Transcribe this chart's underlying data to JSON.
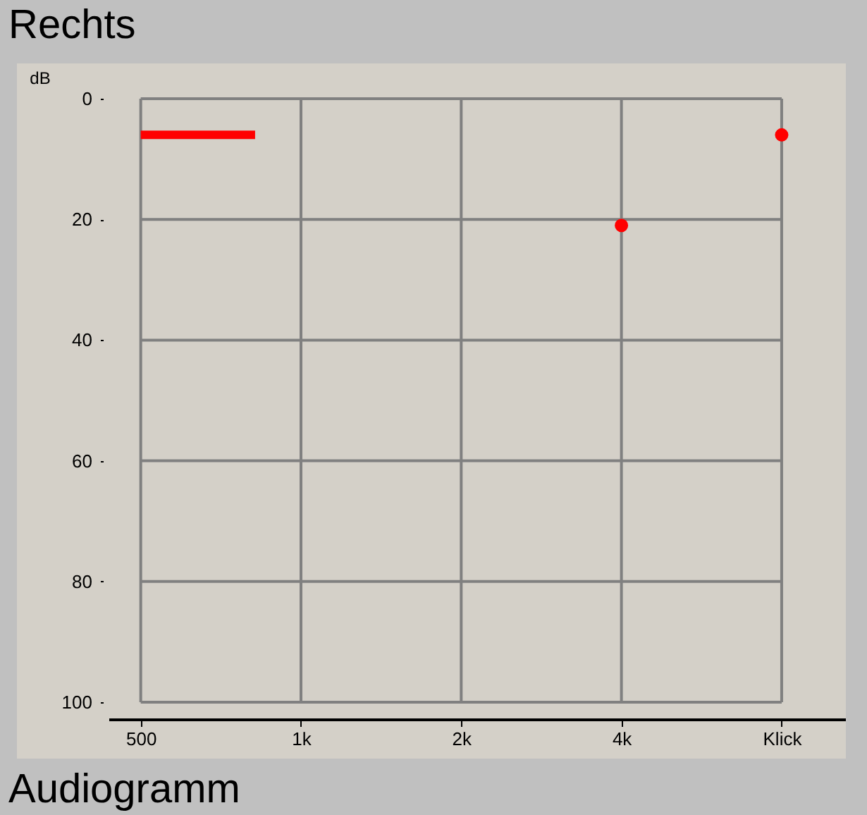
{
  "chart_data": {
    "type": "scatter",
    "title": "Rechts",
    "ylabel": "dB",
    "annotations": [
      "Audiogramm"
    ],
    "series": [
      {
        "type": "line",
        "color": "#ff0000",
        "marker": "none",
        "x": [
          500,
          820
        ],
        "values": [
          6,
          6
        ]
      },
      {
        "color": "#ff0000",
        "x": [
          4000,
          8000
        ],
        "values": [
          21,
          6
        ]
      }
    ],
    "log": "x",
    "xlim": [
      435,
      10560
    ],
    "xticks": [
      500,
      {
        "value": 1000,
        "label": "1k"
      },
      {
        "value": 2000,
        "label": "2k"
      },
      {
        "value": 4000,
        "label": "4k"
      },
      {
        "value": 8000,
        "label": "Klick"
      }
    ],
    "ylim": [
      100,
      0
    ],
    "yticks": [
      0,
      20,
      40,
      60,
      80,
      100
    ],
    "grid": true,
    "marker": "circle",
    "line_style": "solid"
  }
}
